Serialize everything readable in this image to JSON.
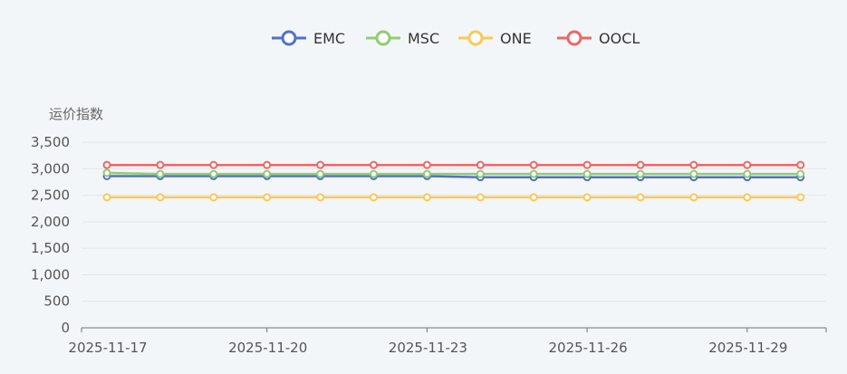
{
  "chart_data": {
    "type": "line",
    "ylabel": "运价指数",
    "legend_position": "top-center",
    "grid": true,
    "x": [
      "2025-11-17",
      "2025-11-18",
      "2025-11-19",
      "2025-11-20",
      "2025-11-21",
      "2025-11-22",
      "2025-11-23",
      "2025-11-24",
      "2025-11-25",
      "2025-11-26",
      "2025-11-27",
      "2025-11-28",
      "2025-11-29",
      "2025-11-30"
    ],
    "x_tick_labels": [
      "2025-11-17",
      "2025-11-20",
      "2025-11-23",
      "2025-11-26",
      "2025-11-29"
    ],
    "ylim": [
      0,
      3500
    ],
    "y_ticks": [
      0,
      500,
      1000,
      1500,
      2000,
      2500,
      3000,
      3500
    ],
    "y_tick_labels": [
      "0",
      "500",
      "1,000",
      "1,500",
      "2,000",
      "2,500",
      "3,000",
      "3,500"
    ],
    "series": [
      {
        "name": "EMC",
        "color": "#5470c6",
        "values": [
          2860,
          2860,
          2860,
          2860,
          2860,
          2860,
          2860,
          2840,
          2840,
          2840,
          2840,
          2840,
          2840,
          2840
        ]
      },
      {
        "name": "MSC",
        "color": "#91cc75",
        "values": [
          2920,
          2900,
          2900,
          2900,
          2900,
          2900,
          2900,
          2900,
          2900,
          2900,
          2900,
          2900,
          2900,
          2900
        ]
      },
      {
        "name": "ONE",
        "color": "#fac858",
        "values": [
          2460,
          2460,
          2460,
          2460,
          2460,
          2460,
          2460,
          2460,
          2460,
          2460,
          2460,
          2460,
          2460,
          2460
        ]
      },
      {
        "name": "OOCL",
        "color": "#ee6666",
        "values": [
          3070,
          3070,
          3070,
          3070,
          3070,
          3070,
          3070,
          3070,
          3070,
          3070,
          3070,
          3070,
          3070,
          3070
        ]
      }
    ]
  }
}
